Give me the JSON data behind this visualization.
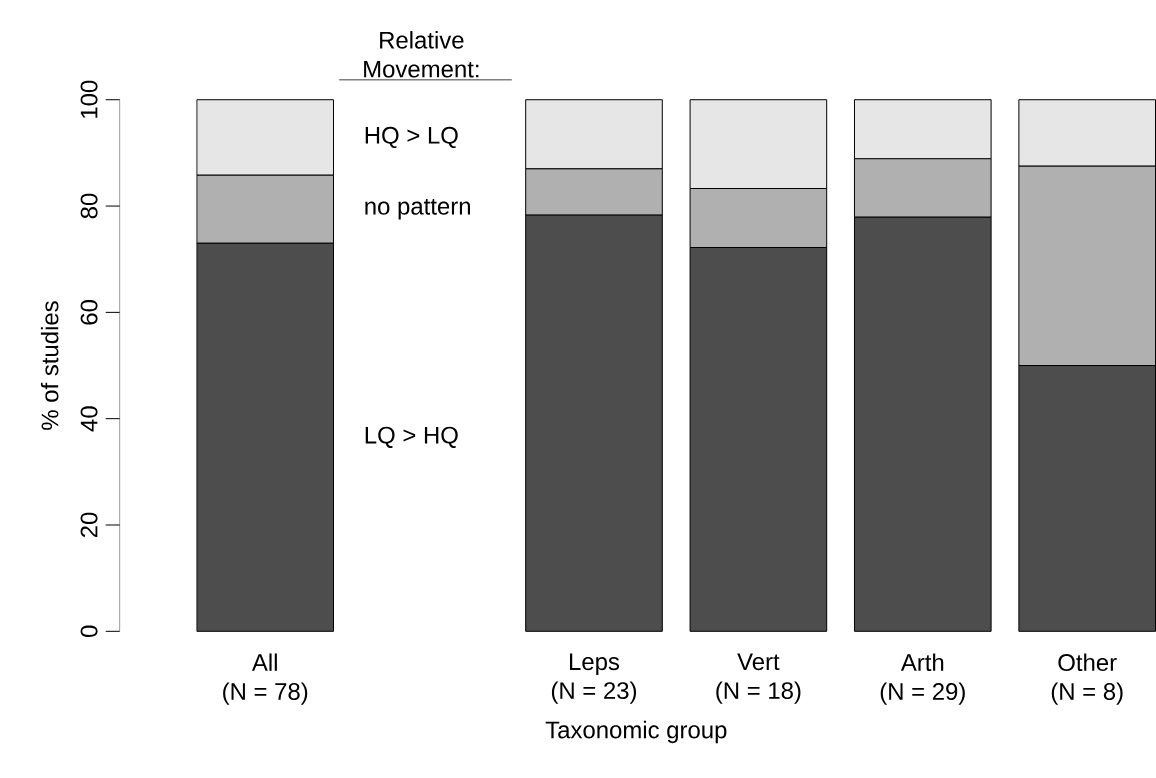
{
  "chart_data": {
    "type": "bar",
    "stacked": true,
    "xlabel": "Taxonomic group",
    "ylabel": "% of studies",
    "legend_title": "Relative Movement:",
    "categories": [
      "All\n(N = 78)",
      null,
      "Leps\n(N = 23)",
      "Vert\n(N = 18)",
      "Arth\n(N = 29)",
      "Other\n(N = 8)"
    ],
    "series": [
      {
        "name": "LQ > HQ",
        "color": "#4d4d4d",
        "values": [
          73.0,
          0,
          78.3,
          72.2,
          77.9,
          50.0
        ]
      },
      {
        "name": "no pattern",
        "color": "#b0b0b0",
        "values": [
          12.8,
          0,
          8.7,
          11.1,
          11.0,
          37.5
        ]
      },
      {
        "name": "HQ > LQ",
        "color": "#e6e6e6",
        "values": [
          14.2,
          0,
          13.0,
          16.7,
          11.1,
          12.5
        ]
      }
    ],
    "ylim": [
      0,
      100
    ],
    "yticks": [
      0,
      20,
      40,
      60,
      80,
      100
    ]
  }
}
